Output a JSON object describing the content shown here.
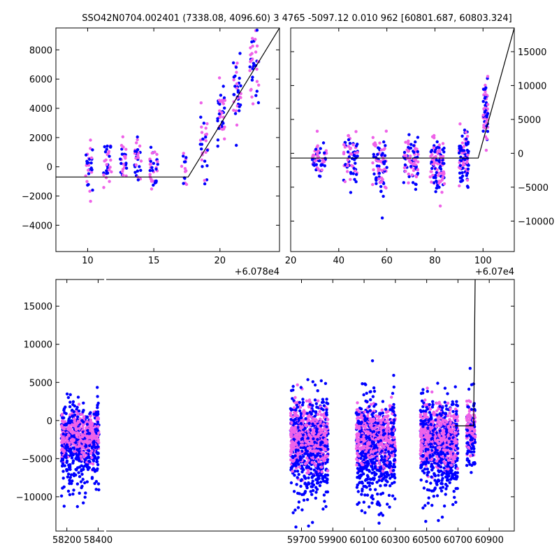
{
  "title": "SSO42N0704.002401 (7338.08, 4096.60)  3 4765 -5097.12 0.010 962 [60801.687, 60803.324]",
  "colors": {
    "band_a": "#0000ff",
    "band_b": "#ee62e8",
    "model": "#000000"
  },
  "chart_data": [
    {
      "type": "scatter",
      "name": "zoom-left",
      "xlim": [
        60787.6,
        60804.5
      ],
      "ylim": [
        -5800,
        9500
      ],
      "x_offset_label": "+6.078e4",
      "xticks": [
        {
          "v": 60790,
          "label": "10"
        },
        {
          "v": 60795,
          "label": "15"
        },
        {
          "v": 60800,
          "label": "20"
        }
      ],
      "yticks": [
        {
          "v": -4000,
          "label": "−4000"
        },
        {
          "v": -2000,
          "label": "−2000"
        },
        {
          "v": 0,
          "label": "0"
        },
        {
          "v": 2000,
          "label": "2000"
        },
        {
          "v": 4000,
          "label": "4000"
        },
        {
          "v": 6000,
          "label": "6000"
        },
        {
          "v": 8000,
          "label": "8000"
        }
      ],
      "model_line": [
        [
          60787.6,
          -700
        ],
        [
          60797.6,
          -700
        ],
        [
          60804.5,
          9500
        ]
      ],
      "clusters": [
        {
          "x": 60790.1,
          "xspread": 0.6,
          "yc": 0,
          "ys": 900,
          "n": 30
        },
        {
          "x": 60791.5,
          "xspread": 0.6,
          "yc": 200,
          "ys": 800,
          "n": 30
        },
        {
          "x": 60792.7,
          "xspread": 0.5,
          "yc": 300,
          "ys": 700,
          "n": 25
        },
        {
          "x": 60793.8,
          "xspread": 0.5,
          "yc": 300,
          "ys": 800,
          "n": 30
        },
        {
          "x": 60795.0,
          "xspread": 0.6,
          "yc": 0,
          "ys": 900,
          "n": 35
        },
        {
          "x": 60797.3,
          "xspread": 0.5,
          "yc": 0,
          "ys": 900,
          "n": 15
        },
        {
          "x": 60798.8,
          "xspread": 0.6,
          "yc": 1600,
          "ys": 1200,
          "n": 30
        },
        {
          "x": 60800.1,
          "xspread": 0.6,
          "yc": 3600,
          "ys": 1100,
          "n": 40
        },
        {
          "x": 60801.3,
          "xspread": 0.6,
          "yc": 5200,
          "ys": 1100,
          "n": 40
        },
        {
          "x": 60802.6,
          "xspread": 0.7,
          "yc": 7200,
          "ys": 1100,
          "n": 40
        }
      ]
    },
    {
      "type": "scatter",
      "name": "zoom-right",
      "xlim": [
        60720,
        60813
      ],
      "ylim": [
        -14500,
        18500
      ],
      "x_offset_label": "+6.07e4",
      "xticks": [
        {
          "v": 60720,
          "label": "20"
        },
        {
          "v": 60740,
          "label": "40"
        },
        {
          "v": 60760,
          "label": "60"
        },
        {
          "v": 60780,
          "label": "80"
        },
        {
          "v": 60800,
          "label": "100"
        }
      ],
      "yticks": [
        {
          "v": -10000,
          "label": "−10000"
        },
        {
          "v": -5000,
          "label": "−5000"
        },
        {
          "v": 0,
          "label": "0"
        },
        {
          "v": 5000,
          "label": "5000"
        },
        {
          "v": 10000,
          "label": "10000"
        },
        {
          "v": 15000,
          "label": "15000"
        }
      ],
      "model_line": [
        [
          60720,
          -700
        ],
        [
          60798,
          -700
        ],
        [
          60813,
          18500
        ]
      ],
      "clusters": [
        {
          "x": 60732,
          "xspread": 6,
          "yc": -1000,
          "ys": 1300,
          "n": 60
        },
        {
          "x": 60745,
          "xspread": 6,
          "yc": -1200,
          "ys": 1800,
          "n": 70
        },
        {
          "x": 60757,
          "xspread": 6,
          "yc": -1500,
          "ys": 2000,
          "n": 80
        },
        {
          "x": 60770,
          "xspread": 6,
          "yc": -1300,
          "ys": 1800,
          "n": 90
        },
        {
          "x": 60781,
          "xspread": 6,
          "yc": -1500,
          "ys": 2200,
          "n": 110
        },
        {
          "x": 60792,
          "xspread": 4,
          "yc": -800,
          "ys": 2200,
          "n": 90
        },
        {
          "x": 60801,
          "xspread": 2,
          "yc": 6000,
          "ys": 2500,
          "n": 60
        }
      ]
    },
    {
      "type": "scatter",
      "name": "full",
      "xlim": [
        58130,
        61060
      ],
      "ylim": [
        -14500,
        18500
      ],
      "broken_axis": {
        "gap_between": [
          58420,
          59600
        ],
        "dashes_at": 58445
      },
      "xticks": [
        {
          "v": 58200,
          "label": "58200"
        },
        {
          "v": 58400,
          "label": "58400"
        },
        {
          "v": 59700,
          "label": "59700"
        },
        {
          "v": 59900,
          "label": "59900"
        },
        {
          "v": 60100,
          "label": "60100"
        },
        {
          "v": 60300,
          "label": "60300"
        },
        {
          "v": 60500,
          "label": "60500"
        },
        {
          "v": 60700,
          "label": "60700"
        },
        {
          "v": 60900,
          "label": "60900"
        }
      ],
      "yticks": [
        {
          "v": -10000,
          "label": "−10000"
        },
        {
          "v": -5000,
          "label": "−5000"
        },
        {
          "v": 0,
          "label": "0"
        },
        {
          "v": 5000,
          "label": "5000"
        },
        {
          "v": 10000,
          "label": "10000"
        },
        {
          "v": 15000,
          "label": "15000"
        }
      ],
      "model_line": [
        [
          60680,
          -700
        ],
        [
          60800,
          -700
        ],
        [
          60810,
          18500
        ]
      ],
      "seasons": [
        {
          "x0": 58165,
          "x1": 58405,
          "yc": -2000,
          "ys": 2500,
          "n": 900
        },
        {
          "x0": 59630,
          "x1": 59870,
          "yc": -2200,
          "ys": 3200,
          "n": 1000
        },
        {
          "x0": 60050,
          "x1": 60300,
          "yc": -2200,
          "ys": 3200,
          "n": 1000
        },
        {
          "x0": 60460,
          "x1": 60700,
          "yc": -2200,
          "ys": 3000,
          "n": 1000
        },
        {
          "x0": 60755,
          "x1": 60810,
          "yc": -1000,
          "ys": 2500,
          "n": 200
        }
      ]
    }
  ]
}
